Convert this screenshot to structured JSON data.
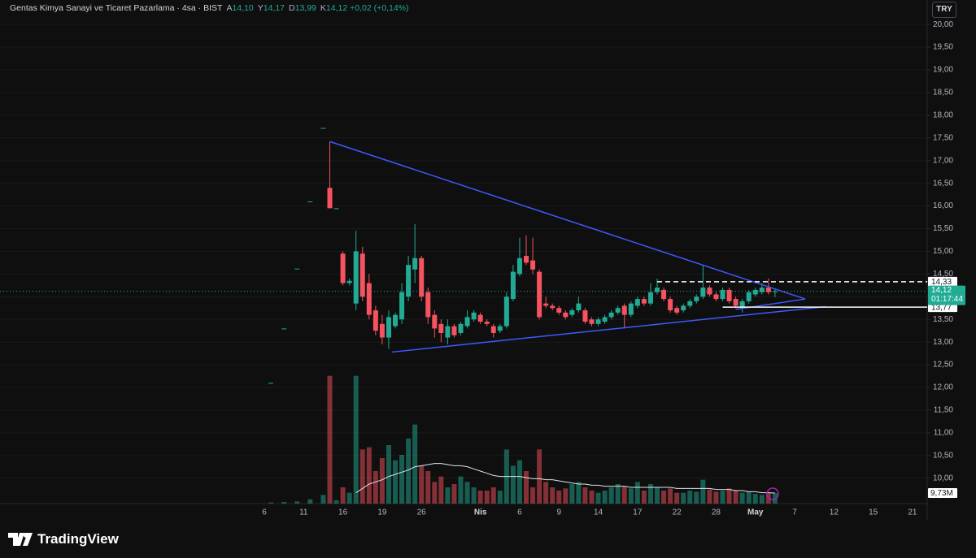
{
  "chart_data": {
    "type": "candlestick",
    "title": "Gentas Kimya Sanayi ve Ticaret Pazarlama · 4sa · BIST",
    "ohlc_legend": [
      {
        "label": "A",
        "value": "14,10"
      },
      {
        "label": "Y",
        "value": "14,17"
      },
      {
        "label": "D",
        "value": "13,99"
      },
      {
        "label": "K",
        "value": "14,12"
      }
    ],
    "change": "+0,02 (+0,14%)",
    "currency": "TRY",
    "categories": [
      "6",
      null,
      null,
      null,
      null,
      null,
      "11",
      null,
      null,
      null,
      null,
      null,
      "16",
      null,
      null,
      null,
      null,
      null,
      "19",
      null,
      null,
      null,
      null,
      null,
      "26",
      null,
      null,
      null,
      null,
      null,
      null,
      null,
      null,
      "Nis",
      null,
      null,
      null,
      null,
      null,
      "6",
      null,
      null,
      null,
      null,
      null,
      "9",
      null,
      null,
      null,
      null,
      null,
      "14",
      null,
      null,
      null,
      null,
      null,
      "17",
      null,
      null,
      null,
      null,
      null,
      "22",
      null,
      null,
      null,
      null,
      null,
      "28",
      null,
      null,
      null,
      null,
      null,
      "May",
      null,
      null,
      null,
      null,
      null,
      "7",
      null,
      null,
      null,
      null,
      null,
      "12",
      null,
      null,
      null,
      null,
      null,
      "15",
      null,
      null,
      null,
      null,
      null,
      "21"
    ],
    "open": [
      null,
      12.1,
      null,
      13.3,
      null,
      14.62,
      null,
      16.1,
      null,
      17.72,
      16.4,
      15.95,
      14.95,
      14.3,
      13.85,
      14.95,
      14.3,
      13.7,
      13.4,
      13.1,
      13.35,
      13.5,
      14.0,
      14.6,
      14.85,
      14.1,
      13.6,
      13.4,
      13.1,
      13.35,
      13.2,
      13.35,
      13.5,
      13.6,
      13.45,
      13.35,
      13.25,
      13.35,
      13.95,
      14.5,
      14.9,
      14.8,
      14.55,
      13.85,
      13.8,
      13.75,
      13.65,
      13.6,
      13.7,
      13.7,
      13.5,
      13.4,
      13.45,
      13.55,
      13.65,
      13.8,
      13.6,
      13.8,
      13.95,
      13.85,
      14.1,
      14.15,
      13.95,
      13.75,
      13.7,
      13.8,
      13.9,
      14.0,
      14.2,
      14.05,
      13.95,
      14.15,
      13.95,
      13.75,
      13.9,
      14.05,
      14.1,
      14.2,
      14.1,
      null,
      null,
      null,
      null,
      null,
      null,
      null,
      null,
      null,
      null,
      null,
      null,
      null,
      null,
      null,
      null,
      null,
      null,
      null,
      null,
      null
    ],
    "high": [
      null,
      12.1,
      null,
      13.3,
      null,
      14.62,
      null,
      16.1,
      null,
      17.72,
      17.42,
      15.95,
      15.0,
      14.4,
      15.45,
      15.1,
      14.5,
      13.8,
      13.6,
      13.7,
      13.65,
      14.3,
      14.9,
      15.6,
      14.9,
      14.2,
      13.7,
      13.5,
      13.5,
      13.4,
      13.45,
      13.7,
      13.7,
      13.65,
      13.5,
      13.4,
      13.4,
      14.1,
      14.7,
      15.3,
      15.35,
      15.3,
      14.6,
      14.0,
      13.85,
      13.8,
      13.7,
      13.75,
      14.0,
      13.75,
      13.55,
      13.55,
      13.6,
      13.7,
      13.8,
      13.85,
      13.9,
      14.0,
      14.0,
      14.3,
      14.4,
      14.2,
      14.0,
      13.8,
      13.85,
      13.95,
      14.05,
      14.7,
      14.25,
      14.1,
      14.2,
      14.2,
      14.0,
      13.95,
      14.15,
      14.2,
      14.3,
      14.4,
      14.17,
      null,
      null,
      null,
      null,
      null,
      null,
      null,
      null,
      null,
      null,
      null,
      null,
      null,
      null,
      null,
      null,
      null,
      null,
      null,
      null,
      null
    ],
    "low": [
      null,
      12.1,
      null,
      13.3,
      null,
      14.62,
      null,
      16.1,
      null,
      17.72,
      15.95,
      15.95,
      14.25,
      14.25,
      13.7,
      13.9,
      13.5,
      13.15,
      12.95,
      12.85,
      13.3,
      13.4,
      13.9,
      14.3,
      13.9,
      13.4,
      13.1,
      13.0,
      12.95,
      13.1,
      13.15,
      13.3,
      13.45,
      13.4,
      13.35,
      13.1,
      13.2,
      13.3,
      13.9,
      14.45,
      14.7,
      14.5,
      13.5,
      13.75,
      13.7,
      13.6,
      13.5,
      13.55,
      13.65,
      13.4,
      13.35,
      13.35,
      13.4,
      13.5,
      13.6,
      13.3,
      13.55,
      13.75,
      13.8,
      13.8,
      14.05,
      13.9,
      13.65,
      13.6,
      13.65,
      13.75,
      13.85,
      13.95,
      14.0,
      13.9,
      13.9,
      13.85,
      13.75,
      13.65,
      13.85,
      14.0,
      14.05,
      14.05,
      13.99,
      null,
      null,
      null,
      null,
      null,
      null,
      null,
      null,
      null,
      null,
      null,
      null,
      null,
      null,
      null,
      null,
      null,
      null,
      null,
      null,
      null
    ],
    "close": [
      null,
      12.1,
      null,
      13.3,
      null,
      14.62,
      null,
      16.1,
      null,
      17.72,
      15.95,
      15.95,
      14.3,
      14.35,
      15.0,
      14.0,
      13.6,
      13.25,
      13.1,
      13.55,
      13.6,
      14.1,
      14.7,
      14.85,
      14.0,
      13.55,
      13.3,
      13.2,
      13.35,
      13.15,
      13.4,
      13.55,
      13.65,
      13.45,
      13.4,
      13.2,
      13.35,
      14.0,
      14.55,
      14.85,
      14.75,
      14.6,
      13.55,
      13.8,
      13.75,
      13.65,
      13.55,
      13.7,
      13.85,
      13.45,
      13.4,
      13.5,
      13.55,
      13.65,
      13.75,
      13.6,
      13.85,
      13.95,
      13.85,
      14.1,
      14.2,
      13.95,
      13.7,
      13.65,
      13.8,
      13.9,
      14.0,
      14.2,
      14.05,
      13.95,
      14.15,
      13.9,
      13.8,
      13.9,
      14.1,
      14.15,
      14.2,
      14.1,
      14.12,
      null,
      null,
      null,
      null,
      null,
      null,
      null,
      null,
      null,
      null,
      null,
      null,
      null,
      null,
      null,
      null,
      null,
      null,
      null,
      null,
      null
    ],
    "volume": [
      null,
      1000000,
      null,
      1500000,
      null,
      2000000,
      null,
      4000000,
      null,
      8000000,
      118000000,
      3000000,
      15000000,
      10000000,
      118000000,
      50000000,
      52000000,
      30000000,
      42000000,
      54000000,
      40000000,
      45000000,
      60000000,
      73000000,
      35000000,
      30000000,
      20000000,
      25000000,
      15000000,
      18000000,
      25000000,
      20000000,
      15000000,
      12000000,
      12000000,
      15000000,
      12000000,
      50000000,
      35000000,
      40000000,
      30000000,
      15000000,
      50000000,
      20000000,
      15000000,
      12000000,
      14000000,
      18000000,
      20000000,
      15000000,
      12000000,
      10000000,
      12000000,
      15000000,
      18000000,
      16000000,
      14000000,
      20000000,
      12000000,
      18000000,
      15000000,
      12000000,
      14000000,
      10000000,
      10000000,
      12000000,
      11000000,
      22000000,
      13000000,
      11000000,
      12000000,
      14000000,
      12000000,
      10000000,
      11000000,
      9000000,
      8000000,
      10000000,
      9730000,
      null,
      null,
      null,
      null,
      null,
      null,
      null,
      null,
      null,
      null,
      null,
      null,
      null,
      null,
      null,
      null,
      null,
      null,
      null,
      null,
      null
    ],
    "volume_ma": [
      null,
      null,
      null,
      null,
      null,
      null,
      null,
      null,
      null,
      null,
      null,
      null,
      null,
      null,
      10000000,
      14000000,
      18000000,
      20000000,
      22000000,
      25000000,
      27000000,
      29000000,
      31000000,
      34000000,
      35000000,
      36000000,
      37000000,
      37000000,
      36000000,
      35000000,
      35000000,
      34000000,
      32000000,
      30000000,
      28000000,
      26000000,
      25000000,
      25000000,
      25000000,
      25000000,
      24000000,
      23000000,
      23000000,
      22000000,
      22000000,
      21000000,
      20000000,
      19000000,
      18000000,
      18000000,
      17000000,
      17000000,
      16000000,
      16000000,
      16000000,
      16000000,
      15000000,
      15000000,
      15000000,
      15000000,
      15000000,
      15000000,
      15000000,
      14000000,
      14000000,
      14000000,
      14000000,
      14000000,
      14000000,
      13000000,
      13000000,
      13000000,
      12000000,
      12000000,
      11000000,
      11000000,
      10000000,
      10000000,
      9730000,
      null,
      null,
      null,
      null,
      null,
      null,
      null,
      null,
      null,
      null,
      null,
      null,
      null,
      null,
      null,
      null,
      null,
      null,
      null,
      null,
      null
    ],
    "up_color": "#22ab94",
    "down_color": "#f7525f",
    "volume_ma_color": "#e0e3eb",
    "drawing_color": "#3d5afe",
    "ylim": [
      9.44,
      20.54
    ],
    "yticks": [
      {
        "value": 10,
        "label": "10,00"
      },
      {
        "value": 10.5,
        "label": "10,50"
      },
      {
        "value": 11,
        "label": "11,00"
      },
      {
        "value": 11.5,
        "label": "11,50"
      },
      {
        "value": 12,
        "label": "12,00"
      },
      {
        "value": 12.5,
        "label": "12,50"
      },
      {
        "value": 13,
        "label": "13,00"
      },
      {
        "value": 13.5,
        "label": "13,50"
      },
      {
        "value": 14,
        "label": "14,00"
      },
      {
        "value": 14.5,
        "label": "14,50"
      },
      {
        "value": 15,
        "label": "15,00"
      },
      {
        "value": 15.5,
        "label": "15,50"
      },
      {
        "value": 16,
        "label": "16,00"
      },
      {
        "value": 16.5,
        "label": "16,50"
      },
      {
        "value": 17,
        "label": "17,00"
      },
      {
        "value": 17.5,
        "label": "17,50"
      },
      {
        "value": 18,
        "label": "18,00"
      },
      {
        "value": 18.5,
        "label": "18,50"
      },
      {
        "value": 19,
        "label": "19,00"
      },
      {
        "value": 19.5,
        "label": "19,50"
      },
      {
        "value": 20,
        "label": "20,00"
      }
    ],
    "volume_lim": [
      0,
      150000000
    ],
    "trendlines": [
      {
        "from": [
          10,
          17.42
        ],
        "to": [
          82.6,
          13.95
        ]
      },
      {
        "from": [
          19.5,
          12.78
        ],
        "to": [
          85.7,
          13.78
        ]
      },
      {
        "from": [
          72,
          13.72
        ],
        "to": [
          82.6,
          13.95
        ]
      }
    ],
    "levels": [
      {
        "value": 14.33,
        "label": "14,33",
        "style": "dashed",
        "from": 60
      },
      {
        "value": 13.77,
        "label": "13,77",
        "style": "solid",
        "from": 70
      }
    ],
    "last_price": {
      "value": 14.12,
      "label": "14,12",
      "countdown": "01:17:44"
    },
    "volume_label": {
      "value": 9730000,
      "label": "9,73M"
    }
  },
  "brand": "TradingView"
}
